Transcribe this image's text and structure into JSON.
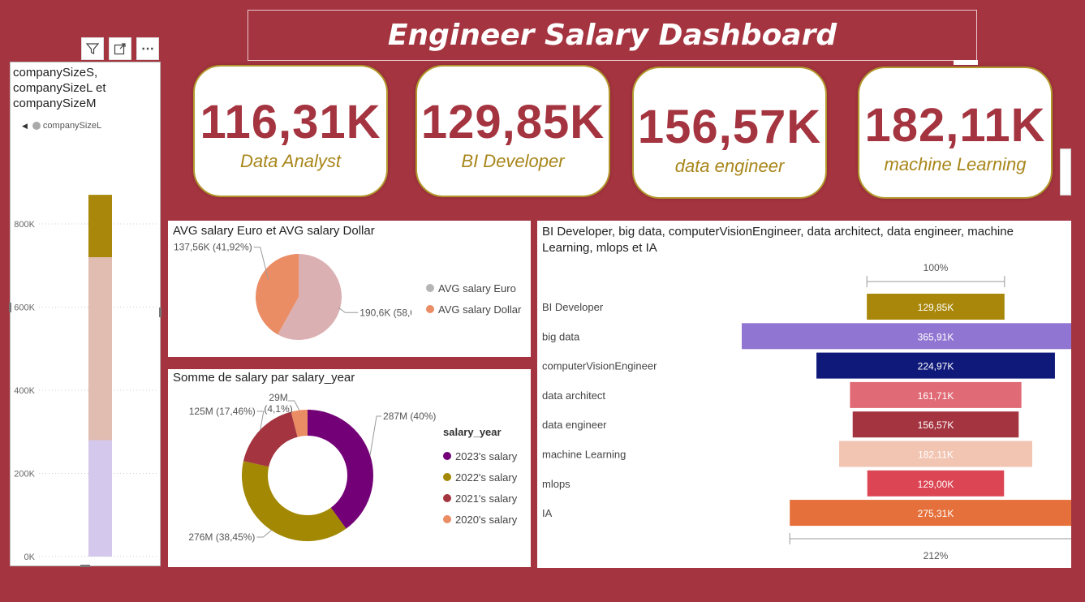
{
  "title": "Engineer Salary Dashboard",
  "kpis": [
    {
      "value": "116,31K",
      "label": "Data Analyst"
    },
    {
      "value": "129,85K",
      "label": "BI Developer"
    },
    {
      "value": "156,57K",
      "label": "data engineer"
    },
    {
      "value": "182,11K",
      "label": "machine Learning"
    }
  ],
  "left_panel": {
    "title_lines": [
      "companySizeS,",
      "companySizeL et",
      "companySizeM"
    ],
    "legend": "companySizeL",
    "toolbar_icons": [
      "filter-icon",
      "focus-mode-icon",
      "more-options-icon"
    ]
  },
  "chart_data": [
    {
      "type": "bar",
      "stacked": true,
      "title": "companySizeS, companySizeL et companySizeM",
      "categories": [
        ""
      ],
      "series": [
        {
          "name": "",
          "values": [
            280
          ],
          "color": "#d4c8ec"
        },
        {
          "name": "",
          "values": [
            440
          ],
          "color": "#e1bcb1"
        },
        {
          "name": "",
          "values": [
            150
          ],
          "color": "#a8870a"
        }
      ],
      "ylim": [
        0,
        880
      ],
      "yticks": [
        "0K",
        "200K",
        "400K",
        "600K",
        "800K"
      ],
      "grid": true
    },
    {
      "type": "pie",
      "title": "AVG salary Euro et AVG salary Dollar",
      "slices": [
        {
          "name": "AVG salary Euro",
          "value": 190.6,
          "label": "190,6K (58,08%)",
          "color": "#dbb0b2"
        },
        {
          "name": "AVG salary Dollar",
          "value": 137.56,
          "label": "137,56K (41,92%)",
          "color": "#ea8c64"
        }
      ],
      "legend": "right"
    },
    {
      "type": "pie",
      "donut": true,
      "title": "Somme de salary par salary_year",
      "legend_title": "salary_year",
      "slices": [
        {
          "name": "2023's  salary",
          "value": 287,
          "label": "287M (40%)",
          "color": "#730077"
        },
        {
          "name": "2022's  salary",
          "value": 276,
          "label": "276M (38,45%)",
          "color": "#a28803"
        },
        {
          "name": "2021's  salary",
          "value": 125,
          "label": "125M (17,46%)",
          "color": "#a4343f"
        },
        {
          "name": "2020's  salary",
          "value": 29,
          "label_lines": [
            "29M",
            "(4,1%)"
          ],
          "color": "#ea8c64"
        }
      ],
      "legend": "right"
    },
    {
      "type": "bar",
      "orientation": "funnel",
      "title": "BI Developer, big data, computerVisionEngineer, data architect, data engineer, machine Learning, mlops et IA",
      "categories": [
        "BI Developer",
        "big data",
        "computerVisionEngineer",
        "data architect",
        "data engineer",
        "machine Learning",
        "mlops",
        "IA"
      ],
      "values": [
        129.85,
        365.91,
        224.97,
        161.71,
        156.57,
        182.11,
        129.0,
        275.31
      ],
      "value_labels": [
        "129,85K",
        "365,91K",
        "224,97K",
        "161,71K",
        "156,57K",
        "182,11K",
        "129,00K",
        "275,31K"
      ],
      "colors": [
        "#a8870a",
        "#9175d2",
        "#0f197a",
        "#e06b76",
        "#a4343f",
        "#f2c4b2",
        "#dc4553",
        "#e5703b"
      ],
      "top_percent": "100%",
      "bottom_percent": "212%"
    }
  ]
}
